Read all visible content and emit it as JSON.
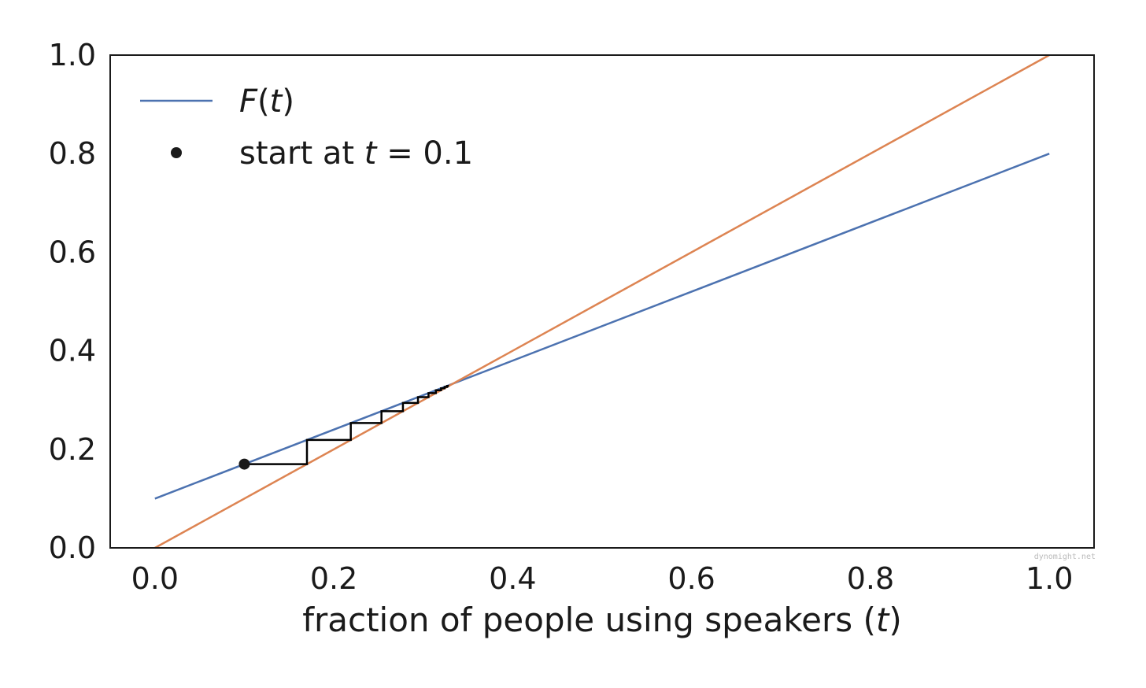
{
  "chart_data": {
    "type": "line",
    "xlabel": "fraction of people using speakers (t)",
    "xlabel_parts": {
      "text": "fraction of people using speakers (",
      "var": "t",
      "close": ")"
    },
    "ylabel": "",
    "xlim": [
      -0.05,
      1.05
    ],
    "ylim": [
      0.0,
      1.0
    ],
    "xticks": [
      0.0,
      0.2,
      0.4,
      0.6,
      0.8,
      1.0
    ],
    "xtick_labels": [
      "0.0",
      "0.2",
      "0.4",
      "0.6",
      "0.8",
      "1.0"
    ],
    "yticks": [
      0.0,
      0.2,
      0.4,
      0.6,
      0.8,
      1.0
    ],
    "ytick_labels": [
      "0.0",
      "0.2",
      "0.4",
      "0.6",
      "0.8",
      "1.0"
    ],
    "grid": false,
    "legend_position": "top-left",
    "series": [
      {
        "name": "F(t)",
        "color": "#4c72b0",
        "x": [
          0.0,
          1.0
        ],
        "y": [
          0.1,
          0.8
        ]
      },
      {
        "color": "#dd8452",
        "x": [
          0.0,
          1.0
        ],
        "y": [
          0.0,
          1.0
        ]
      },
      {
        "color": "#000000",
        "x": [
          0.1,
          0.17,
          0.17,
          0.219,
          0.219,
          0.2533,
          0.2533,
          0.2773,
          0.2773,
          0.2941,
          0.2941,
          0.3059,
          0.3059,
          0.3141,
          0.3141,
          0.3199,
          0.3199,
          0.3239,
          0.3239,
          0.3267,
          0.3267,
          0.3287
        ],
        "y": [
          0.17,
          0.17,
          0.219,
          0.219,
          0.2533,
          0.2533,
          0.2773,
          0.2773,
          0.2941,
          0.2941,
          0.3059,
          0.3059,
          0.3141,
          0.3141,
          0.3199,
          0.3199,
          0.3239,
          0.3239,
          0.3267,
          0.3267,
          0.3287,
          0.3287
        ]
      }
    ],
    "start_point": {
      "x": 0.1,
      "y": 0.17,
      "color": "#1a1a1a"
    },
    "legend": [
      {
        "kind": "line",
        "color": "#4c72b0",
        "label_func": "F",
        "label_open": "(",
        "label_var": "t",
        "label_close": ")"
      },
      {
        "kind": "marker",
        "color": "#1a1a1a",
        "label_text": "start at ",
        "label_var": "t",
        "label_eq": " = 0.1"
      }
    ],
    "watermark": "dynomight.net"
  }
}
